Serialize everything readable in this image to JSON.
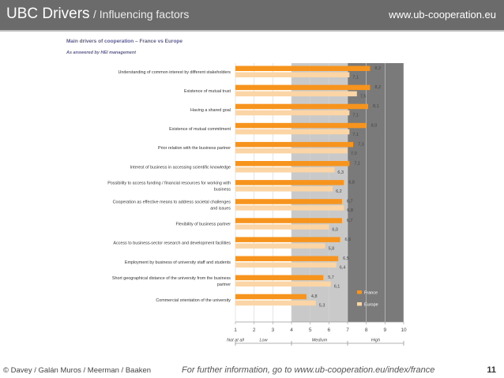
{
  "header": {
    "title": "UBC Drivers",
    "subtitle": "/ Influencing factors",
    "url": "www.ub-cooperation.eu"
  },
  "footer": {
    "authors": "© Davey / Galán Muros / Meerman / Baaken",
    "info": "For further information, go to www.ub-cooperation.eu/index/france",
    "page": "11"
  },
  "colors": {
    "france": "#f7941d",
    "europe": "#fbd5a5",
    "low_band": "#ffffff",
    "medium_band": "#c9c9c9",
    "high_band": "#7a7a7a",
    "title": "#5c5c8a"
  },
  "chart_data": {
    "type": "bar",
    "orientation": "horizontal",
    "title": "Main drivers of cooperation – France vs Europe",
    "subtitle": "As answered by HEI management",
    "categories": [
      [
        "Understanding of common interest by different stakeholders"
      ],
      [
        "Existence of mutual trust"
      ],
      [
        "Having a shared goal"
      ],
      [
        "Existence of mutual commitment"
      ],
      [
        "Prior relation with the business partner"
      ],
      [
        "Interest of business in accessing scientific knowledge"
      ],
      [
        "Possibility to access funding / financial resources for working with",
        "business"
      ],
      [
        "Cooperation as effective means to address societal challenges",
        "and issues"
      ],
      [
        "Flexibility of business partner"
      ],
      [
        "Access to business-sector research and development facilities"
      ],
      [
        "Employment by business of university staff and students"
      ],
      [
        "Short geographical distance of the university from the business",
        "partner"
      ],
      [
        "Commercial orientation of the university"
      ]
    ],
    "series": [
      {
        "name": "France",
        "values": [
          8.2,
          8.2,
          8.1,
          8.0,
          7.3,
          7.1,
          6.8,
          6.7,
          6.7,
          6.6,
          6.5,
          5.7,
          4.8
        ],
        "labels": [
          "8,2",
          "8,2",
          "8,1",
          "8,0",
          "7,3",
          "7,1",
          "6,8",
          "6,7",
          "6,7",
          "6,6",
          "6,5",
          "5,7",
          "4,8"
        ]
      },
      {
        "name": "Europe",
        "values": [
          7.1,
          7.5,
          7.1,
          7.1,
          7.0,
          6.3,
          6.2,
          6.8,
          6.0,
          5.8,
          6.4,
          6.1,
          5.3
        ],
        "labels": [
          "7,1",
          "7,5",
          "7,1",
          "7,1",
          "7,0",
          "6,3",
          "6,2",
          "6,8",
          "6,0",
          "5,8",
          "6,4",
          "6,1",
          "5,3"
        ]
      }
    ],
    "xlim": [
      1,
      10
    ],
    "xticks": [
      "1",
      "2",
      "3",
      "4",
      "5",
      "6",
      "7",
      "8",
      "9",
      "10"
    ],
    "bands": [
      {
        "name": "Not at all",
        "from": 1,
        "to": 1
      },
      {
        "name": "Low",
        "from": 1,
        "to": 4
      },
      {
        "name": "Medium",
        "from": 4,
        "to": 7
      },
      {
        "name": "High",
        "from": 7,
        "to": 10
      }
    ],
    "legend": {
      "entries": [
        "France",
        "Europe"
      ],
      "position": "lower-right, inside high band"
    }
  }
}
